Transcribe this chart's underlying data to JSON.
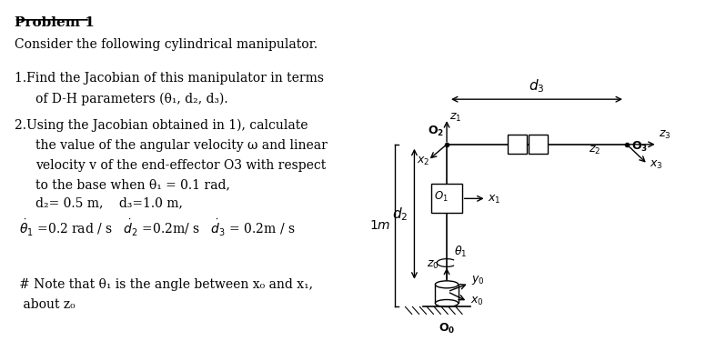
{
  "bg_color": "#ffffff",
  "text_color": "#000000",
  "title": "Problem 1",
  "subtitle": "Consider the following cylindrical manipulator.",
  "line1a": "1.Find the Jacobian of this manipulator in terms",
  "line1b": "of D-H parameters (θ₁, d₂, d₃).",
  "line2a": "2.Using the Jacobian obtained in 1), calculate",
  "line2b": "the value of the angular velocity ω and linear",
  "line2c": "velocity v of the end-effector O3 with respect",
  "line2d": "to the base when θ₁ = 0.1 rad,",
  "line2e": "d₂= 0.5 m,    d₃=1.0 m,",
  "note1": "# Note that θ₁ is the angle between x₀ and x₁,",
  "note2": " about z₀"
}
